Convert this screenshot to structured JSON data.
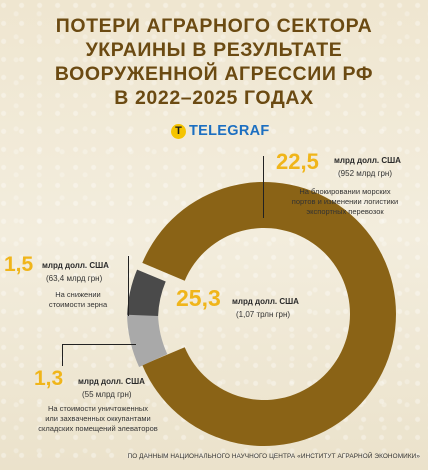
{
  "title_lines": [
    "ПОТЕРИ АГРАРНОГО СЕКТОРА",
    "УКРАИНЫ В РЕЗУЛЬТАТЕ",
    "ВООРУЖЕННОЙ АГРЕССИИ РФ",
    "В 2022–2025 ГОДАХ"
  ],
  "logo": {
    "letter": "T",
    "text": "TELEGRAF"
  },
  "colors": {
    "accent": "#f0b51a",
    "title": "#6b4a12",
    "slice_main": "#8a6316",
    "slice_grey": "#a9a9a9",
    "slice_dark": "#4a4a4a"
  },
  "chart_data": {
    "type": "pie",
    "unit": "млрд долл. США",
    "total": {
      "value": "25,3",
      "unit": "млрд долл. США",
      "sub": "(1,07 трлн грн)"
    },
    "slices": [
      {
        "value": 22.5,
        "label_value": "22,5",
        "unit": "млрд долл. США",
        "sub": "(952 млрд грн)",
        "desc_lines": [
          "На блокировании морских",
          "портов и изменении логистики",
          "экспортных перевозок"
        ],
        "color": "#8a6316"
      },
      {
        "value": 1.5,
        "label_value": "1,5",
        "unit": "млрд долл. США",
        "sub": "(63,4 млрд грн)",
        "desc_lines": [
          "На снижении",
          "стоимости зерна"
        ],
        "color": "#a9a9a9"
      },
      {
        "value": 1.3,
        "label_value": "1,3",
        "unit": "млрд долл. США",
        "sub": "(55 млрд грн)",
        "desc_lines": [
          "На стоимости уничтоженных",
          "или захваченных оккупантами",
          "складских помещений элеваторов"
        ],
        "color": "#4a4a4a"
      }
    ]
  },
  "source": "ПО ДАННЫМ НАЦИОНАЛЬНОГО НАУЧНОГО ЦЕНТРА «ИНСТИТУТ АГРАРНОЙ ЭКОНОМИКИ»"
}
